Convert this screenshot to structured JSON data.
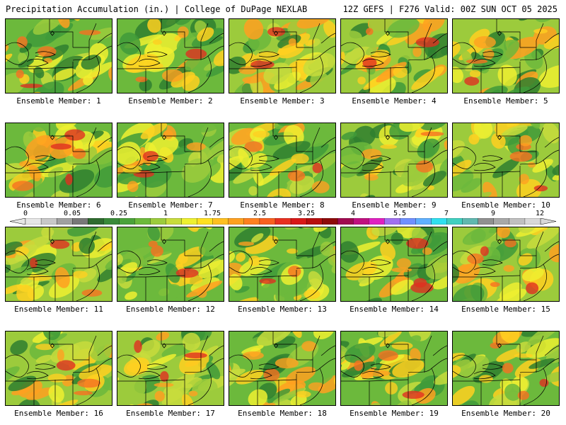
{
  "header": {
    "left": "Precipitation Accumulation (in.) | College of DuPage NEXLAB",
    "right": "12Z GEFS | F276 Valid: 00Z SUN OCT 05 2025"
  },
  "colorbar": {
    "labels": [
      "0",
      "0.05",
      "0.25",
      "1",
      "1.75",
      "2.5",
      "3.25",
      "4",
      "5.5",
      "7",
      "9",
      "12"
    ],
    "colors": [
      "#e6e6e6",
      "#c8c8c8",
      "#a0a0a0",
      "#787878",
      "#2f6b2f",
      "#3a8a3a",
      "#4aa23a",
      "#6cb93c",
      "#9ccb3c",
      "#c8dc3c",
      "#eef030",
      "#ffe020",
      "#ffc020",
      "#ffa020",
      "#ff8020",
      "#f86020",
      "#e83020",
      "#d81818",
      "#b80e0e",
      "#8e0a0a",
      "#a00a50",
      "#c01080",
      "#e020c0",
      "#a070f0",
      "#7090ff",
      "#60b0ff",
      "#30e0f0",
      "#40d0c0",
      "#60b8b0",
      "#909090",
      "#a8a8a8",
      "#c0c0c0",
      "#d8d8d8"
    ]
  },
  "members": [
    {
      "label": "Ensemble Member: 1"
    },
    {
      "label": "Ensemble Member: 2"
    },
    {
      "label": "Ensemble Member: 3"
    },
    {
      "label": "Ensemble Member: 4"
    },
    {
      "label": "Ensemble Member: 5"
    },
    {
      "label": "Ensemble Member: 6"
    },
    {
      "label": "Ensemble Member: 7"
    },
    {
      "label": "Ensemble Member: 8"
    },
    {
      "label": "Ensemble Member: 9"
    },
    {
      "label": "Ensemble Member: 10"
    },
    {
      "label": "Ensemble Member: 11"
    },
    {
      "label": "Ensemble Member: 12"
    },
    {
      "label": "Ensemble Member: 13"
    },
    {
      "label": "Ensemble Member: 14"
    },
    {
      "label": "Ensemble Member: 15"
    },
    {
      "label": "Ensemble Member: 16"
    },
    {
      "label": "Ensemble Member: 17"
    },
    {
      "label": "Ensemble Member: 18"
    },
    {
      "label": "Ensemble Member: 19"
    },
    {
      "label": "Ensemble Member: 20"
    }
  ]
}
